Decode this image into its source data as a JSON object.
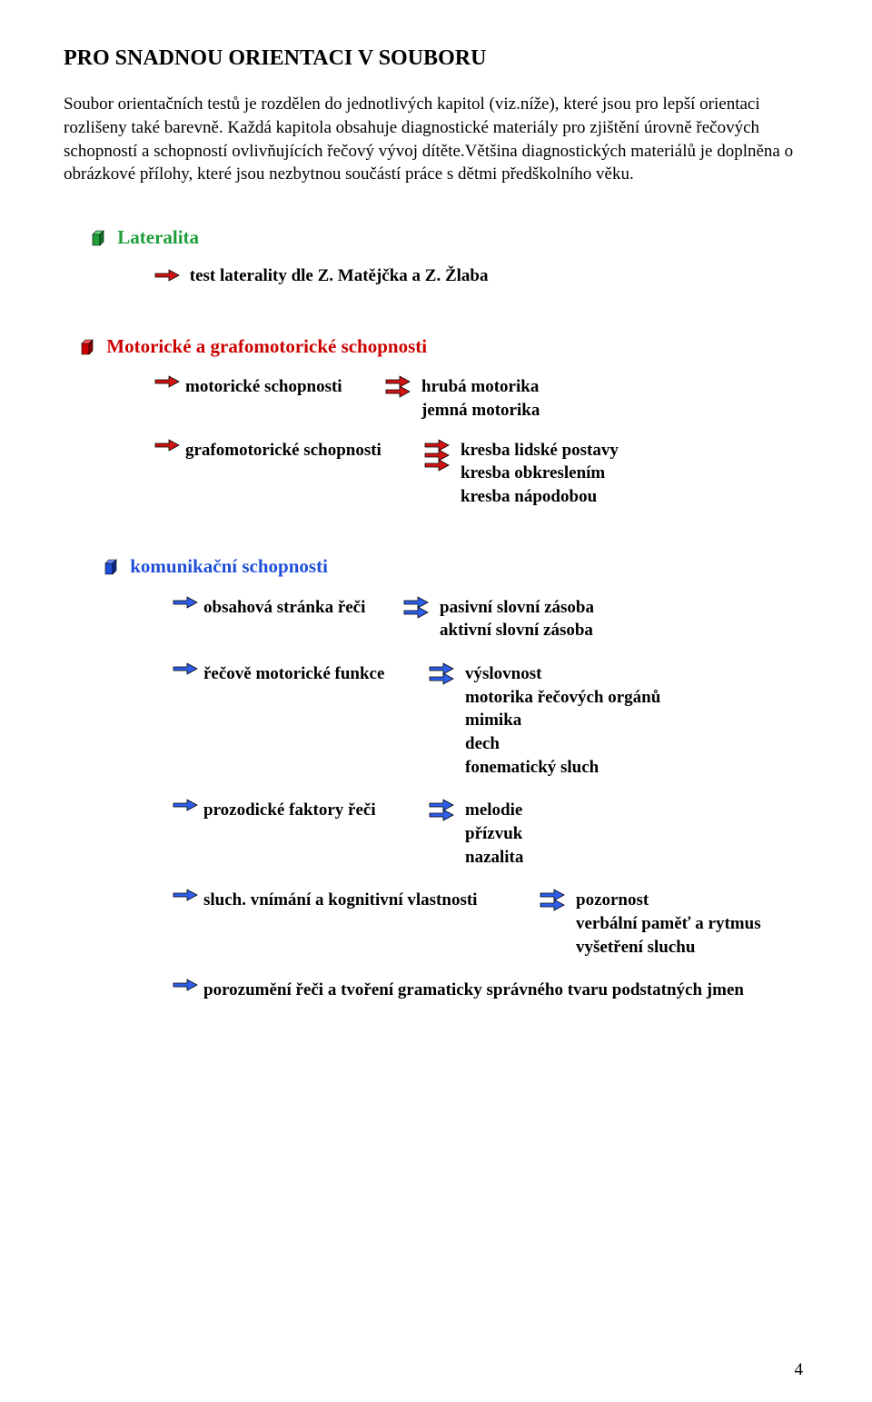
{
  "colors": {
    "green": "#1f9e3b",
    "red": "#cc0000",
    "blue": "#1f4fd8",
    "text": "#000000",
    "cube_green_light": "#5fd67a",
    "cube_green_dark": "#0f7a27",
    "cube_red_light": "#ff5a5a",
    "cube_red_dark": "#8a0000",
    "cube_blue_light": "#6a8bff",
    "cube_blue_dark": "#0b2a90",
    "arrow_red_fill": "#d01414",
    "arrow_red_edge": "#000000",
    "arrow_blue_fill": "#2e5fe8",
    "arrow_blue_edge": "#000000"
  },
  "title": "PRO SNADNOU ORIENTACI  V  SOUBORU",
  "intro": "Soubor orientačních testů je rozdělen do jednotlivých kapitol (viz.níže), které jsou pro lepší orientaci rozlišeny také barevně. Každá kapitola obsahuje diagnostické materiály pro zjištění úrovně řečových schopností a schopností ovlivňujících řečový vývoj dítěte.Většina diagnostických materiálů je doplněna o obrázkové přílohy, které jsou nezbytnou součástí práce s dětmi předškolního věku.",
  "lateralita": {
    "heading": "Lateralita",
    "item": "test laterality dle Z. Matějčka a Z. Žlaba"
  },
  "motoricke": {
    "heading": "Motorické a grafomotorické schopnosti",
    "row1_left": "motorické schopnosti",
    "row1_right_1": "hrubá motorika",
    "row1_right_2": "jemná motorika",
    "row2_left": "grafomotorické schopnosti",
    "row2_right_1": "kresba lidské postavy",
    "row2_right_2": "kresba obkreslením",
    "row2_right_3": "kresba nápodobou"
  },
  "komunikacni": {
    "heading": "komunikační schopnosti",
    "r1_left": "obsahová stránka řeči",
    "r1_right_1": "pasivní slovní zásoba",
    "r1_right_2": "aktivní slovní zásoba",
    "r2_left": "řečově motorické funkce",
    "r2_right_1": "výslovnost",
    "r2_right_2": "motorika řečových orgánů",
    "r2_right_3": "mimika",
    "r2_right_4": "dech",
    "r2_right_5": "fonematický sluch",
    "r3_left": "prozodické faktory řeči",
    "r3_right_1": "melodie",
    "r3_right_2": "přízvuk",
    "r3_right_3": "nazalita",
    "r4_left": "sluch. vnímání a kognitivní vlastnosti",
    "r4_right_1": "pozornost",
    "r4_right_2": "verbální paměť a rytmus",
    "r4_right_3": "vyšetření sluchu",
    "r5": "porozumění řeči a tvoření gramaticky správného tvaru podstatných jmen"
  },
  "page_number": "4"
}
